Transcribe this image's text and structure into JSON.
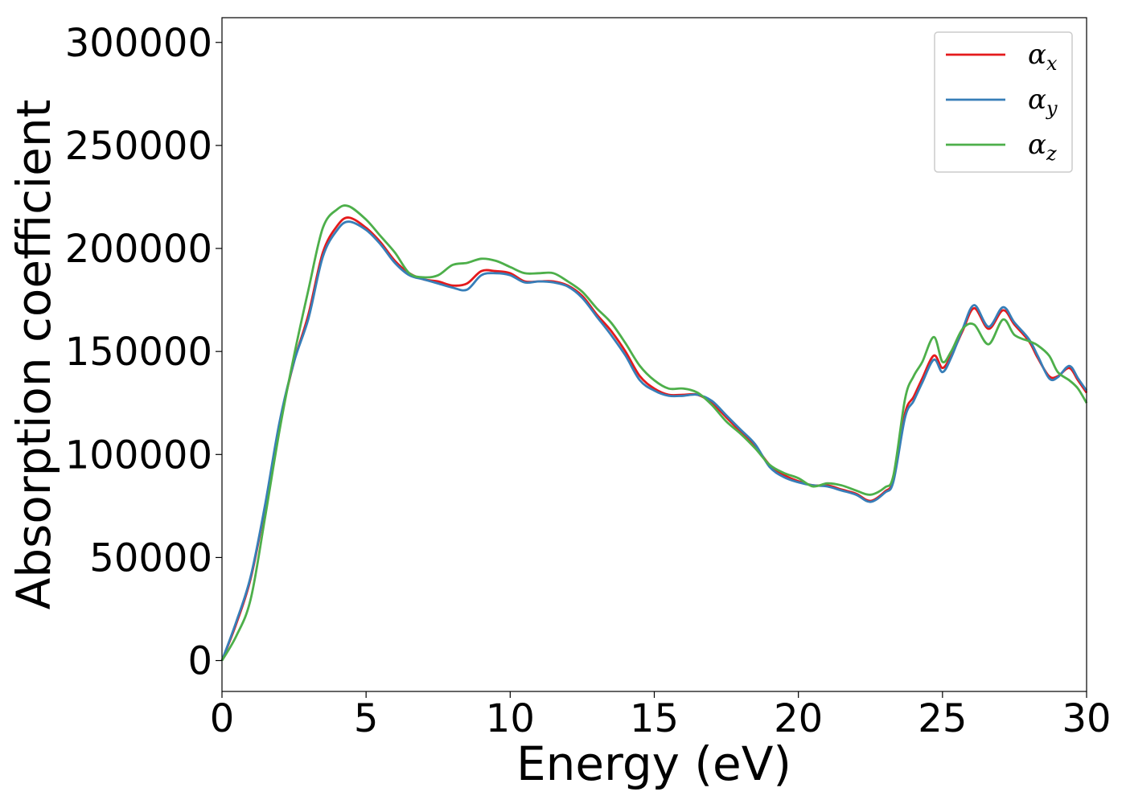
{
  "chart_data": {
    "type": "line",
    "xlabel": "Energy (eV)",
    "ylabel": "Absorption coefficient",
    "xlim": [
      0,
      30
    ],
    "ylim": [
      -15000,
      312000
    ],
    "xticks": [
      0,
      5,
      10,
      15,
      20,
      25,
      30
    ],
    "yticks": [
      0,
      50000,
      100000,
      150000,
      200000,
      250000,
      300000
    ],
    "xtick_labels": [
      "0",
      "5",
      "10",
      "15",
      "20",
      "25",
      "30"
    ],
    "ytick_labels": [
      "0",
      "50000",
      "100000",
      "150000",
      "200000",
      "250000",
      "300000"
    ],
    "grid": false,
    "legend_position": "top-right",
    "series": [
      {
        "name": "αx",
        "symbol": "α",
        "subscript": "x",
        "color": "#e41a1c",
        "x": [
          0,
          0.5,
          1,
          1.5,
          2,
          2.5,
          3,
          3.5,
          4,
          4.4,
          5,
          5.5,
          6,
          6.5,
          7,
          7.5,
          8,
          8.5,
          9,
          9.5,
          10,
          10.5,
          11,
          11.5,
          12,
          12.5,
          13,
          13.5,
          14,
          14.5,
          15,
          15.5,
          16,
          16.5,
          17,
          17.5,
          18,
          18.5,
          19,
          19.5,
          20,
          20.5,
          21,
          21.5,
          22,
          22.5,
          23,
          23.3,
          23.7,
          24,
          24.3,
          24.7,
          25,
          25.3,
          25.7,
          26.1,
          26.6,
          27.1,
          27.5,
          28,
          28.3,
          28.7,
          29,
          29.4,
          29.7,
          30
        ],
        "y": [
          0,
          18000,
          40000,
          75000,
          115000,
          145000,
          168000,
          198000,
          211000,
          215000,
          210000,
          203000,
          194000,
          188000,
          185000,
          184000,
          182000,
          183000,
          189000,
          189000,
          188000,
          184000,
          184000,
          184000,
          182000,
          177000,
          168000,
          160000,
          150000,
          138000,
          132000,
          129000,
          129000,
          129000,
          125000,
          118000,
          111000,
          104000,
          95000,
          90000,
          87000,
          85000,
          85000,
          83000,
          81000,
          77500,
          82000,
          88000,
          120000,
          128000,
          137000,
          148000,
          142000,
          148000,
          160000,
          171000,
          161000,
          170000,
          163000,
          155000,
          147000,
          138000,
          138000,
          142000,
          136000,
          130000
        ]
      },
      {
        "name": "αy",
        "symbol": "α",
        "subscript": "y",
        "color": "#377eb8",
        "x": [
          0,
          0.5,
          1,
          1.5,
          2,
          2.5,
          3,
          3.5,
          4,
          4.4,
          5,
          5.5,
          6,
          6.5,
          7,
          7.5,
          8,
          8.5,
          9,
          9.5,
          10,
          10.5,
          11,
          11.5,
          12,
          12.5,
          13,
          13.5,
          14,
          14.5,
          15,
          15.5,
          16,
          16.5,
          17,
          17.5,
          18,
          18.5,
          19,
          19.5,
          20,
          20.5,
          21,
          21.5,
          22,
          22.5,
          23,
          23.3,
          23.7,
          24,
          24.3,
          24.7,
          25,
          25.3,
          25.7,
          26.1,
          26.6,
          27.1,
          27.5,
          28,
          28.3,
          28.7,
          29,
          29.4,
          29.7,
          30
        ],
        "y": [
          0,
          19000,
          41000,
          76000,
          116000,
          145000,
          166000,
          196000,
          209000,
          213000,
          209000,
          202000,
          193000,
          187000,
          185000,
          183000,
          181000,
          180000,
          187000,
          188000,
          187000,
          183500,
          184000,
          183500,
          181500,
          176000,
          167000,
          158000,
          148000,
          136000,
          131000,
          128500,
          128500,
          129000,
          126000,
          119000,
          112000,
          105000,
          94000,
          89000,
          86500,
          85000,
          84500,
          82500,
          80500,
          77000,
          81500,
          87000,
          118000,
          126000,
          135000,
          146000,
          140000,
          147000,
          161000,
          172500,
          162000,
          171500,
          164000,
          156000,
          148000,
          137000,
          137500,
          143000,
          137000,
          131000
        ]
      },
      {
        "name": "αz",
        "symbol": "α",
        "subscript": "z",
        "color": "#4daf4a",
        "x": [
          0,
          0.5,
          1,
          1.5,
          2,
          2.5,
          3,
          3.5,
          4,
          4.4,
          5,
          5.5,
          6,
          6.5,
          7,
          7.5,
          8,
          8.5,
          9,
          9.5,
          10,
          10.5,
          11,
          11.5,
          12,
          12.5,
          13,
          13.5,
          14,
          14.5,
          15,
          15.5,
          16,
          16.5,
          17,
          17.5,
          18,
          18.5,
          19,
          19.5,
          20,
          20.5,
          21,
          21.5,
          22,
          22.5,
          23,
          23.3,
          23.7,
          24,
          24.3,
          24.7,
          25,
          25.3,
          25.7,
          26.1,
          26.6,
          27.1,
          27.5,
          28,
          28.3,
          28.7,
          29,
          29.4,
          29.7,
          30
        ],
        "y": [
          0,
          12000,
          30000,
          70000,
          112000,
          148000,
          180000,
          210000,
          219000,
          220500,
          214000,
          206000,
          198000,
          188000,
          186000,
          187000,
          192000,
          193000,
          195000,
          194000,
          191000,
          188000,
          188000,
          188000,
          184000,
          179000,
          171000,
          164000,
          154000,
          143000,
          136000,
          132000,
          132000,
          130000,
          124000,
          116000,
          110000,
          103000,
          95000,
          91000,
          88500,
          84500,
          86000,
          85000,
          82500,
          80500,
          84000,
          90000,
          127000,
          138000,
          145000,
          157000,
          145000,
          150000,
          161000,
          163000,
          153500,
          165500,
          158000,
          155000,
          153000,
          148000,
          140000,
          136000,
          132000,
          125000
        ]
      }
    ]
  }
}
